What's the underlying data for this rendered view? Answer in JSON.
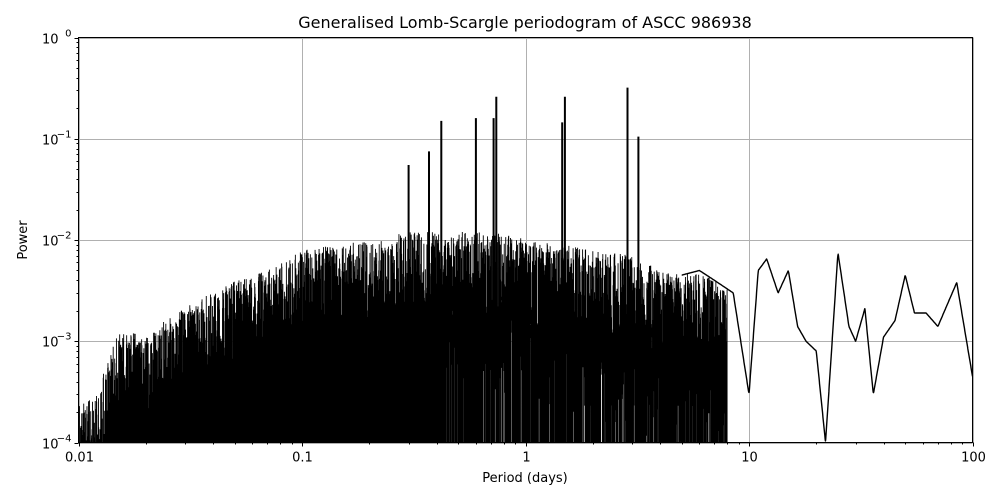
{
  "chart_data": {
    "type": "line",
    "title": "Generalised Lomb-Scargle periodogram of ASCC 986938",
    "xlabel": "Period (days)",
    "ylabel": "Power",
    "xscale": "log",
    "yscale": "log",
    "xlim": [
      0.01,
      100
    ],
    "ylim": [
      0.0001,
      1
    ],
    "grid": true,
    "line_color": "#000000",
    "grid_color": "#b0b0b0",
    "x_ticks": [
      {
        "value": 0.01,
        "label": "0.01"
      },
      {
        "value": 0.1,
        "label": "0.1"
      },
      {
        "value": 1,
        "label": "1"
      },
      {
        "value": 10,
        "label": "10"
      },
      {
        "value": 100,
        "label": "100"
      }
    ],
    "y_ticks": [
      {
        "value": 1,
        "base": "10",
        "exp": "0"
      },
      {
        "value": 0.1,
        "base": "10",
        "exp": "−1"
      },
      {
        "value": 0.01,
        "base": "10",
        "exp": "−2"
      },
      {
        "value": 0.001,
        "base": "10",
        "exp": "−3"
      },
      {
        "value": 0.0001,
        "base": "10",
        "exp": "−4"
      }
    ],
    "notable_peaks": [
      {
        "period": 2.86,
        "power": 0.32
      },
      {
        "period": 3.2,
        "power": 0.105
      },
      {
        "period": 1.5,
        "power": 0.26
      },
      {
        "period": 1.46,
        "power": 0.145
      },
      {
        "period": 0.74,
        "power": 0.26
      },
      {
        "period": 0.72,
        "power": 0.16
      },
      {
        "period": 0.6,
        "power": 0.16
      },
      {
        "period": 0.42,
        "power": 0.15
      },
      {
        "period": 0.37,
        "power": 0.075
      },
      {
        "period": 0.3,
        "power": 0.055
      }
    ],
    "envelope": {
      "description": "Dense forest of aliased peaks rising from ~3e-4 at P=0.01 to ~1e-2 near P=1; smooth oscillating curve at long periods",
      "x": [
        0.01,
        0.012,
        0.015,
        0.02,
        0.03,
        0.05,
        0.07,
        0.1,
        0.15,
        0.2,
        0.3,
        0.5,
        0.8,
        1.0,
        1.5,
        2.0,
        3.0,
        4.0,
        5.0,
        6.0,
        7.0,
        8.5,
        10,
        11,
        12,
        13.5,
        15,
        16.5,
        18,
        20,
        22,
        25,
        28,
        30,
        33,
        36,
        40,
        45,
        50,
        55,
        62,
        70,
        85,
        100
      ],
      "y": [
        0.00025,
        0.0003,
        0.0012,
        0.0012,
        0.0022,
        0.004,
        0.005,
        0.008,
        0.009,
        0.01,
        0.012,
        0.012,
        0.012,
        0.01,
        0.009,
        0.008,
        0.007,
        0.005,
        0.0045,
        0.005,
        0.004,
        0.003,
        0.0003,
        0.005,
        0.0065,
        0.003,
        0.005,
        0.0014,
        0.001,
        0.0008,
        0.0001,
        0.0075,
        0.0014,
        0.001,
        0.0021,
        0.0003,
        0.0011,
        0.0016,
        0.0045,
        0.0019,
        0.0019,
        0.0014,
        0.0038,
        0.00045
      ]
    }
  }
}
